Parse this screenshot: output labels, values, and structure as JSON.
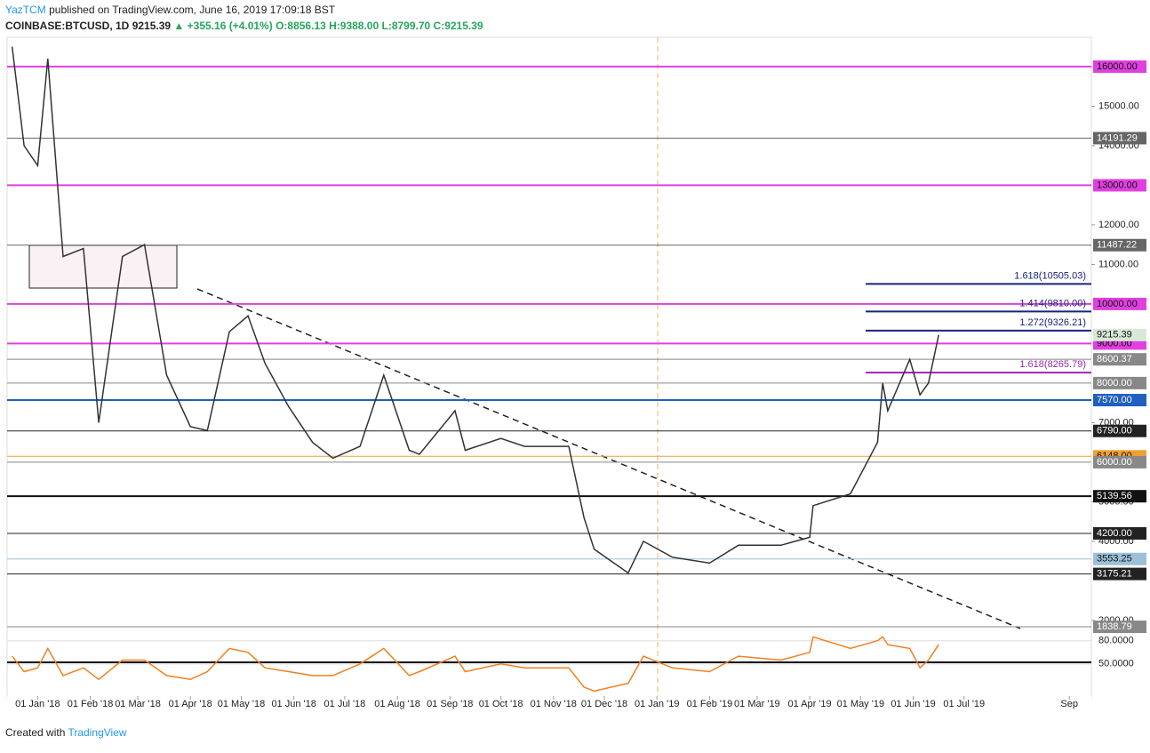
{
  "header": {
    "publisher": "YazTCM",
    "published": "published on TradingView.com, June 16, 2019 17:09:18 BST",
    "symbol": "COINBASE:BTCUSD, 1D",
    "last": "9215.39",
    "arrow": "▲",
    "change": "+355.16 (+4.01%)",
    "ohlc": "O:8856.13 H:9388.00 L:8799.70 C:9215.39"
  },
  "footer": {
    "created": "Created with",
    "brand": "TradingView"
  },
  "chart_data": {
    "type": "line",
    "color": "#333333",
    "xlim": [
      "2017-12-14",
      "2019-09-14"
    ],
    "ylim": [
      1840,
      16740
    ],
    "x": [
      "2017-12-17",
      "2017-12-24",
      "2018-01-01",
      "2018-01-07",
      "2018-01-16",
      "2018-01-28",
      "2018-02-06",
      "2018-02-20",
      "2018-03-05",
      "2018-03-18",
      "2018-04-01",
      "2018-04-11",
      "2018-04-24",
      "2018-05-05",
      "2018-05-15",
      "2018-05-29",
      "2018-06-12",
      "2018-06-24",
      "2018-07-10",
      "2018-07-24",
      "2018-08-08",
      "2018-08-14",
      "2018-09-04",
      "2018-09-10",
      "2018-10-01",
      "2018-10-15",
      "2018-11-10",
      "2018-11-19",
      "2018-11-25",
      "2018-12-15",
      "2018-12-24",
      "2019-01-10",
      "2019-02-01",
      "2019-02-18",
      "2019-03-15",
      "2019-04-01",
      "2019-04-03",
      "2019-04-25",
      "2019-05-11",
      "2019-05-14",
      "2019-05-17",
      "2019-05-30",
      "2019-06-05",
      "2019-06-10",
      "2019-06-16"
    ],
    "values": [
      16500,
      14000,
      13500,
      16200,
      11200,
      11400,
      7000,
      11200,
      11500,
      8200,
      6900,
      6800,
      9300,
      9700,
      8500,
      7400,
      6500,
      6100,
      6400,
      8200,
      6300,
      6200,
      7300,
      6300,
      6600,
      6400,
      6400,
      4600,
      3800,
      3200,
      4000,
      3600,
      3450,
      3900,
      3900,
      4100,
      4900,
      5200,
      6500,
      8000,
      7300,
      8600,
      7700,
      8000,
      9215.39
    ],
    "xticks": [
      {
        "value": "2018-01-01",
        "label": "01 Jan '18"
      },
      {
        "value": "2018-02-01",
        "label": "01 Feb '18"
      },
      {
        "value": "2018-03-01",
        "label": "01 Mar '18"
      },
      {
        "value": "2018-04-01",
        "label": "01 Apr '18"
      },
      {
        "value": "2018-05-01",
        "label": "01 May '18"
      },
      {
        "value": "2018-06-01",
        "label": "01 Jun '18"
      },
      {
        "value": "2018-07-01",
        "label": "01 Jul '18"
      },
      {
        "value": "2018-08-01",
        "label": "01 Aug '18"
      },
      {
        "value": "2018-09-01",
        "label": "01 Sep '18"
      },
      {
        "value": "2018-10-01",
        "label": "01 Oct '18"
      },
      {
        "value": "2018-11-01",
        "label": "01 Nov '18"
      },
      {
        "value": "2018-12-01",
        "label": "01 Dec '18"
      },
      {
        "value": "2019-01-01",
        "label": "01 Jan '19"
      },
      {
        "value": "2019-02-01",
        "label": "01 Feb '19"
      },
      {
        "value": "2019-03-01",
        "label": "01 Mar '19"
      },
      {
        "value": "2019-04-01",
        "label": "01 Apr '19"
      },
      {
        "value": "2019-05-01",
        "label": "01 May '19"
      },
      {
        "value": "2019-06-01",
        "label": "01 Jun '19"
      },
      {
        "value": "2019-07-01",
        "label": "01 Jul '19"
      },
      {
        "value": "2019-09-01",
        "label": "Sep"
      }
    ],
    "yticks": [
      {
        "value": 15000,
        "label": "15000.00"
      },
      {
        "value": 14000,
        "label": "14000.00"
      },
      {
        "value": 12000,
        "label": "12000.00"
      },
      {
        "value": 11000,
        "label": "11000.00"
      },
      {
        "value": 7000,
        "label": "7000.00"
      },
      {
        "value": 5000,
        "label": "5000.00"
      },
      {
        "value": 4000,
        "label": "4000.00"
      },
      {
        "value": 2000,
        "label": "2000.00"
      }
    ],
    "levels": [
      {
        "value": 16000,
        "label": "16000.00",
        "color": "#e040e0"
      },
      {
        "value": 14191.29,
        "label": "14191.29",
        "color": "#666666"
      },
      {
        "value": 13000,
        "label": "13000.00",
        "color": "#e040e0"
      },
      {
        "value": 11487.22,
        "label": "11487.22",
        "color": "#666666"
      },
      {
        "value": 10000,
        "label": "10000.00",
        "color": "#e040e0"
      },
      {
        "value": 9000,
        "label": "9000.00",
        "color": "#e040e0"
      },
      {
        "value": 8600.37,
        "label": "8600.37",
        "color": "#888888"
      },
      {
        "value": 8000,
        "label": "8000.00",
        "color": "#888888"
      },
      {
        "value": 7570,
        "label": "7570.00",
        "color": "#1f5fbf"
      },
      {
        "value": 6790,
        "label": "6790.00",
        "color": "#222222"
      },
      {
        "value": 6148,
        "label": "6148.00",
        "color": "#f0a030"
      },
      {
        "value": 6000,
        "label": "6000.00",
        "color": "#888888"
      },
      {
        "value": 5139.56,
        "label": "5139.56",
        "color": "#111111"
      },
      {
        "value": 4200,
        "label": "4200.00",
        "color": "#222222"
      },
      {
        "value": 3553.25,
        "label": "3553.25",
        "color": "#9cc0d8"
      },
      {
        "value": 3175.21,
        "label": "3175.21",
        "color": "#222222"
      },
      {
        "value": 1838.79,
        "label": "1838.79",
        "color": "#888888"
      }
    ],
    "price_tag": {
      "value": 9215.39,
      "label": "9215.39",
      "color": "#d8e8d8"
    },
    "fib_levels": [
      {
        "value": 10505.03,
        "label": "1.618(10505.03)",
        "color": "#1a237e",
        "start": "2019-05-04"
      },
      {
        "value": 9810,
        "label": "1.414(9810.00)",
        "color": "#1a237e",
        "start": "2019-05-04"
      },
      {
        "value": 9326.21,
        "label": "1.272(9326.21)",
        "color": "#1a237e",
        "start": "2019-05-04"
      },
      {
        "value": 8265.79,
        "label": "1.618(8265.79)",
        "color": "#9c27b0",
        "start": "2019-05-04"
      }
    ],
    "rsi": {
      "color": "#f08020",
      "ylim": [
        5,
        90
      ],
      "yticks": [
        {
          "value": 80,
          "label": "80.0000"
        },
        {
          "value": 50,
          "label": "50.0000"
        }
      ],
      "values": [
        60,
        40,
        45,
        70,
        35,
        45,
        30,
        55,
        55,
        35,
        30,
        40,
        70,
        65,
        45,
        40,
        35,
        35,
        50,
        70,
        35,
        40,
        60,
        40,
        50,
        45,
        45,
        20,
        15,
        25,
        60,
        45,
        40,
        60,
        55,
        65,
        85,
        70,
        80,
        85,
        75,
        70,
        45,
        55,
        75
      ]
    }
  }
}
